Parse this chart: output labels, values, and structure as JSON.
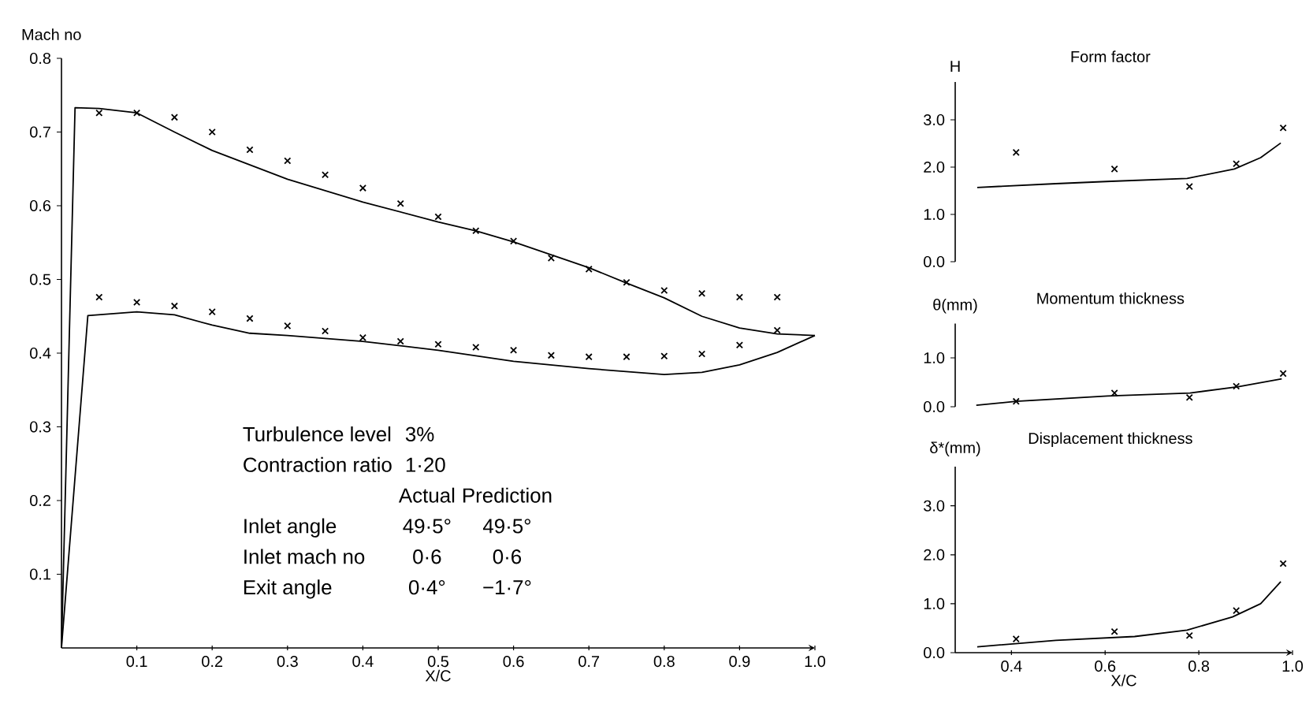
{
  "chart_data": [
    {
      "type": "line",
      "xlabel": "X/C",
      "ylabel": "Mach no",
      "xlim": [
        0,
        1.0
      ],
      "ylim": [
        0,
        0.8
      ],
      "xticks": [
        {
          "value": 0.1,
          "label": "0.1"
        },
        {
          "value": 0.2,
          "label": "0.2"
        },
        {
          "value": 0.3,
          "label": "0.3"
        },
        {
          "value": 0.4,
          "label": "0.4"
        },
        {
          "value": 0.5,
          "label": "0.5"
        },
        {
          "value": 0.6,
          "label": "0.6"
        },
        {
          "value": 0.7,
          "label": "0.7"
        },
        {
          "value": 0.8,
          "label": "0.8"
        },
        {
          "value": 0.9,
          "label": "0.9"
        },
        {
          "value": 1.0,
          "label": "1.0"
        }
      ],
      "yticks": [
        {
          "value": 0.1,
          "label": "0.1"
        },
        {
          "value": 0.2,
          "label": "0.2"
        },
        {
          "value": 0.3,
          "label": "0.3"
        },
        {
          "value": 0.4,
          "label": "0.4"
        },
        {
          "value": 0.5,
          "label": "0.5"
        },
        {
          "value": 0.6,
          "label": "0.6"
        },
        {
          "value": 0.7,
          "label": "0.7"
        },
        {
          "value": 0.8,
          "label": "0.8"
        }
      ],
      "annotations": [
        "Turbulence level",
        "3%",
        "Contraction ratio",
        "1·20",
        "Actual",
        "Prediction",
        "Inlet angle",
        "49·5°",
        "49·5°",
        "Inlet mach no",
        "0·6",
        "0·6",
        "Exit angle",
        "0·4°",
        "−1·7°"
      ],
      "series": [
        {
          "type": "scatter",
          "marker": "cross",
          "color": "#000000",
          "x": [
            0.05,
            0.1,
            0.15,
            0.2,
            0.25,
            0.3,
            0.35,
            0.4,
            0.45,
            0.5,
            0.55,
            0.6,
            0.65,
            0.7,
            0.75,
            0.8,
            0.85,
            0.9,
            0.95
          ],
          "values": [
            0.726,
            0.726,
            0.72,
            0.7,
            0.676,
            0.661,
            0.642,
            0.624,
            0.603,
            0.585,
            0.566,
            0.552,
            0.529,
            0.514,
            0.496,
            0.485,
            0.481,
            0.476,
            0.476
          ]
        },
        {
          "type": "scatter",
          "marker": "cross",
          "color": "#000000",
          "x": [
            0.05,
            0.1,
            0.15,
            0.2,
            0.25,
            0.3,
            0.35,
            0.4,
            0.45,
            0.5,
            0.55,
            0.6,
            0.65,
            0.7,
            0.75,
            0.8,
            0.85,
            0.9,
            0.95
          ],
          "values": [
            0.476,
            0.469,
            0.464,
            0.456,
            0.447,
            0.437,
            0.43,
            0.421,
            0.416,
            0.412,
            0.408,
            0.404,
            0.397,
            0.395,
            0.395,
            0.396,
            0.399,
            0.411,
            0.431
          ]
        },
        {
          "type": "line",
          "color": "#000000",
          "x": [
            0,
            0.018,
            0.05,
            0.1,
            0.15,
            0.2,
            0.3,
            0.4,
            0.5,
            0.55,
            0.6,
            0.7,
            0.75,
            0.8,
            0.85,
            0.9,
            0.95,
            1.0
          ],
          "values": [
            0,
            0.733,
            0.732,
            0.726,
            0.7,
            0.675,
            0.636,
            0.605,
            0.578,
            0.566,
            0.551,
            0.516,
            0.495,
            0.475,
            0.45,
            0.434,
            0.426,
            0.424
          ]
        },
        {
          "type": "line",
          "color": "#000000",
          "x": [
            0,
            0.035,
            0.1,
            0.15,
            0.2,
            0.25,
            0.3,
            0.4,
            0.5,
            0.6,
            0.7,
            0.8,
            0.85,
            0.9,
            0.95,
            1.0
          ],
          "values": [
            0,
            0.451,
            0.456,
            0.452,
            0.438,
            0.427,
            0.424,
            0.416,
            0.404,
            0.389,
            0.379,
            0.371,
            0.374,
            0.384,
            0.401,
            0.424
          ]
        }
      ]
    },
    {
      "type": "line",
      "title": "Form factor",
      "ylabel": "H",
      "tick_labels": "y",
      "xlim": [
        0.28,
        1.0
      ],
      "ylim": [
        0,
        3.8
      ],
      "yticks": [
        {
          "value": 0,
          "label": "0.0"
        },
        {
          "value": 1,
          "label": "1.0"
        },
        {
          "value": 2,
          "label": "2.0"
        },
        {
          "value": 3,
          "label": "3.0"
        }
      ],
      "series": [
        {
          "type": "scatter",
          "marker": "cross",
          "color": "#000000",
          "x": [
            0.41,
            0.62,
            0.78,
            0.88,
            0.98
          ],
          "values": [
            2.31,
            1.96,
            1.59,
            2.07,
            2.83
          ]
        },
        {
          "type": "line",
          "color": "#000000",
          "x": [
            0.327,
            0.495,
            0.613,
            0.775,
            0.876,
            0.932,
            0.975
          ],
          "values": [
            1.57,
            1.65,
            1.7,
            1.76,
            1.96,
            2.2,
            2.51
          ]
        }
      ]
    },
    {
      "type": "line",
      "title": "Momentum thickness",
      "ylabel": "θ(mm)",
      "tick_labels": "y",
      "xlim": [
        0.28,
        1.0
      ],
      "ylim": [
        0,
        1.7
      ],
      "yticks": [
        {
          "value": 0,
          "label": "0.0"
        },
        {
          "value": 1,
          "label": "1.0"
        }
      ],
      "series": [
        {
          "type": "scatter",
          "marker": "cross",
          "color": "#000000",
          "x": [
            0.41,
            0.62,
            0.78,
            0.88,
            0.98
          ],
          "values": [
            0.11,
            0.28,
            0.19,
            0.42,
            0.68
          ]
        },
        {
          "type": "line",
          "color": "#000000",
          "x": [
            0.325,
            0.41,
            0.605,
            0.781,
            0.884,
            0.977
          ],
          "values": [
            0.03,
            0.11,
            0.22,
            0.28,
            0.41,
            0.57
          ]
        }
      ]
    },
    {
      "type": "line",
      "title": "Displacement thickness",
      "ylabel": "δ*(mm)",
      "xlabel": "X/C",
      "xlim": [
        0.28,
        1.0
      ],
      "ylim": [
        0,
        3.8
      ],
      "xticks": [
        {
          "value": 0.4,
          "label": "0.4"
        },
        {
          "value": 0.6,
          "label": "0.6"
        },
        {
          "value": 0.8,
          "label": "0.8"
        },
        {
          "value": 1.0,
          "label": "1.0"
        }
      ],
      "yticks": [
        {
          "value": 0,
          "label": "0.0"
        },
        {
          "value": 1,
          "label": "1.0"
        },
        {
          "value": 2,
          "label": "2.0"
        },
        {
          "value": 3,
          "label": "3.0"
        }
      ],
      "series": [
        {
          "type": "scatter",
          "marker": "cross",
          "color": "#000000",
          "x": [
            0.41,
            0.62,
            0.78,
            0.88,
            0.98
          ],
          "values": [
            0.28,
            0.43,
            0.35,
            0.86,
            1.82
          ]
        },
        {
          "type": "line",
          "color": "#000000",
          "x": [
            0.327,
            0.495,
            0.663,
            0.775,
            0.872,
            0.932,
            0.975
          ],
          "values": [
            0.12,
            0.25,
            0.33,
            0.46,
            0.73,
            1.0,
            1.45
          ]
        }
      ]
    }
  ]
}
